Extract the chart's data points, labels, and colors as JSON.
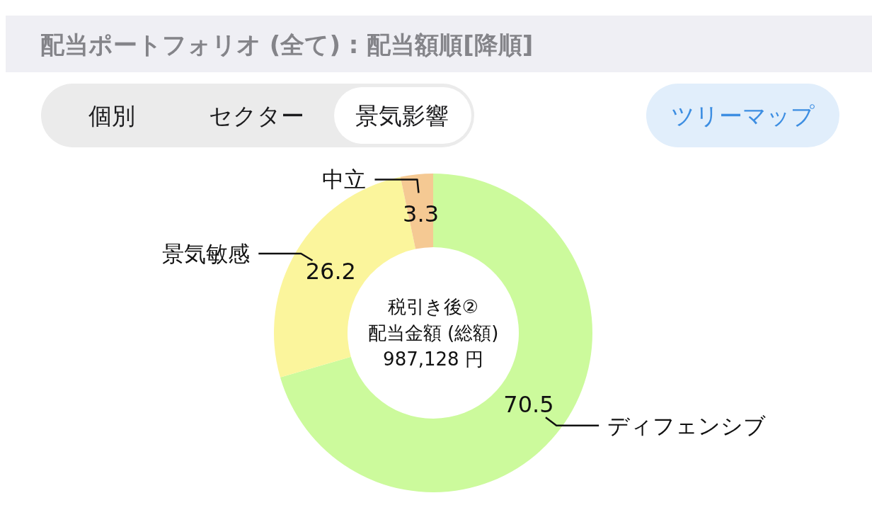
{
  "chart_data": {
    "type": "donut",
    "title": "配当ポートフォリオ (全て) : 配当額順[降順]",
    "categories": [
      "ディフェンシブ",
      "景気敏感",
      "中立"
    ],
    "values": [
      70.5,
      26.2,
      3.3
    ],
    "colors": [
      "#ccfa9c",
      "#fbf59c",
      "#f5c993"
    ],
    "data_labels": true,
    "annotations": [
      "個別",
      "セクター",
      "景気影響",
      "ツリーマップ",
      "税引き後②",
      "配当金額 (総額)",
      "987,128 円"
    ]
  }
}
